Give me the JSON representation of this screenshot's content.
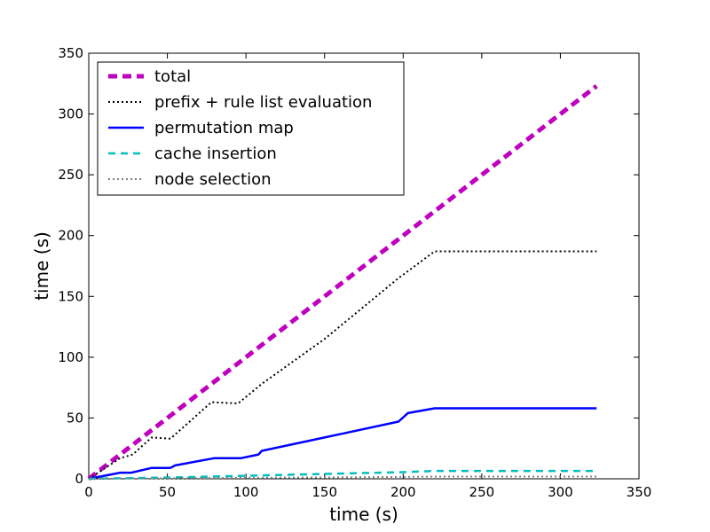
{
  "chart_data": {
    "type": "line",
    "xlabel": "time (s)",
    "ylabel": "time (s)",
    "xlim": [
      0,
      350
    ],
    "ylim": [
      0,
      350
    ],
    "xticks": [
      "0",
      "50",
      "100",
      "150",
      "200",
      "250",
      "300",
      "350"
    ],
    "yticks": [
      "0",
      "50",
      "100",
      "150",
      "200",
      "250",
      "300",
      "350"
    ],
    "grid": false,
    "legend_position": "top-left",
    "series": [
      {
        "name": "total",
        "color": "#bf00bf",
        "style": "dashed-thick",
        "x": [
          0,
          323
        ],
        "y": [
          0,
          323
        ]
      },
      {
        "name": "prefix + rule list evaluation",
        "color": "#000000",
        "style": "dotted",
        "x": [
          0,
          20,
          28,
          40,
          52,
          78,
          95,
          110,
          150,
          197,
          220,
          323
        ],
        "y": [
          0,
          17,
          20,
          34,
          33,
          63,
          62,
          78,
          115,
          165,
          187,
          187
        ]
      },
      {
        "name": "permutation map",
        "color": "#0000ff",
        "style": "solid",
        "x": [
          0,
          20,
          27,
          40,
          52,
          55,
          80,
          97,
          108,
          110,
          150,
          197,
          203,
          220,
          323
        ],
        "y": [
          0,
          5,
          5,
          9,
          9,
          11,
          17,
          17,
          20,
          23,
          34,
          47,
          54,
          58,
          58
        ]
      },
      {
        "name": "cache insertion",
        "color": "#00bfbf",
        "style": "dashed",
        "x": [
          0,
          50,
          100,
          150,
          200,
          220,
          323
        ],
        "y": [
          0,
          1,
          2.5,
          4,
          5.5,
          6.5,
          6.5
        ]
      },
      {
        "name": "node selection",
        "color": "#808080",
        "style": "dotted",
        "x": [
          0,
          100,
          200,
          220,
          323
        ],
        "y": [
          0,
          0.8,
          1.5,
          1.8,
          1.8
        ]
      }
    ]
  }
}
